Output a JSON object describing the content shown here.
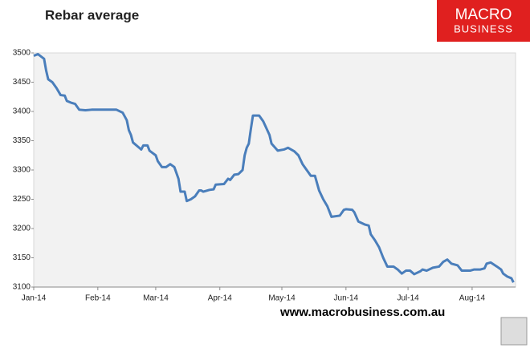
{
  "chart_data": {
    "type": "line",
    "title": "Rebar average",
    "x": [
      0,
      2,
      5,
      6,
      7,
      9,
      11,
      13,
      15,
      16,
      18,
      20,
      22,
      25,
      28,
      40,
      43,
      45,
      46,
      47,
      48,
      51,
      52,
      53,
      55,
      56,
      59,
      60,
      62,
      64,
      66,
      68,
      70,
      71,
      73,
      74,
      76,
      78,
      80,
      81,
      82,
      85,
      87,
      88,
      92,
      94,
      95,
      97,
      99,
      101,
      102,
      103,
      104,
      105,
      106,
      109,
      111,
      114,
      115,
      118,
      121,
      123,
      126,
      128,
      130,
      133,
      134,
      136,
      138,
      140,
      142,
      144,
      148,
      150,
      151,
      154,
      155,
      157,
      160,
      162,
      163,
      165,
      167,
      169,
      171,
      174,
      176,
      178,
      180,
      182,
      184,
      187,
      188,
      190,
      193,
      196,
      198,
      200,
      202,
      205,
      207,
      211,
      213,
      216,
      218,
      219,
      221,
      224,
      226,
      227,
      229,
      231,
      232
    ],
    "series": [
      {
        "name": "Rebar average",
        "color": "#4a7ebb",
        "values": [
          3495,
          3498,
          3490,
          3470,
          3455,
          3450,
          3440,
          3428,
          3427,
          3418,
          3415,
          3413,
          3403,
          3402,
          3403,
          3403,
          3398,
          3385,
          3368,
          3360,
          3347,
          3338,
          3335,
          3342,
          3342,
          3333,
          3325,
          3315,
          3305,
          3305,
          3310,
          3305,
          3285,
          3263,
          3263,
          3247,
          3250,
          3255,
          3265,
          3265,
          3263,
          3266,
          3267,
          3275,
          3276,
          3285,
          3283,
          3292,
          3293,
          3300,
          3325,
          3338,
          3345,
          3370,
          3393,
          3393,
          3383,
          3360,
          3345,
          3333,
          3335,
          3338,
          3332,
          3325,
          3310,
          3295,
          3290,
          3290,
          3265,
          3250,
          3238,
          3220,
          3222,
          3232,
          3233,
          3232,
          3228,
          3212,
          3207,
          3205,
          3190,
          3180,
          3168,
          3150,
          3135,
          3135,
          3130,
          3123,
          3128,
          3128,
          3122,
          3127,
          3130,
          3128,
          3133,
          3135,
          3143,
          3147,
          3140,
          3137,
          3128,
          3128,
          3130,
          3130,
          3132,
          3140,
          3142,
          3135,
          3130,
          3123,
          3118,
          3115,
          3108
        ]
      }
    ],
    "xlim": [
      0,
      233
    ],
    "xticks": [
      {
        "value": 0,
        "label": "Jan-14"
      },
      {
        "value": 31,
        "label": "Feb-14"
      },
      {
        "value": 59,
        "label": "Mar-14"
      },
      {
        "value": 90,
        "label": "Apr-14"
      },
      {
        "value": 120,
        "label": "May-14"
      },
      {
        "value": 151,
        "label": "Jun-14"
      },
      {
        "value": 181,
        "label": "Jul-14"
      },
      {
        "value": 212,
        "label": "Aug-14"
      }
    ],
    "ylim": [
      3100,
      3500
    ],
    "yticks": [
      3100,
      3150,
      3200,
      3250,
      3300,
      3350,
      3400,
      3450,
      3500
    ],
    "grid": false
  },
  "branding": {
    "logo_top": "MACRO",
    "logo_bottom": "BUSINESS",
    "url": "www.macrobusiness.com.au"
  }
}
